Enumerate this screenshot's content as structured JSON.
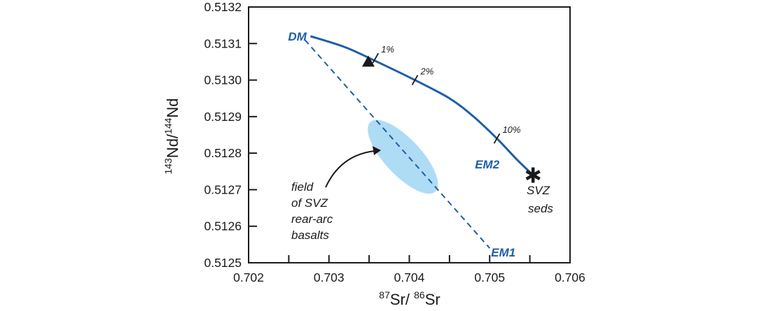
{
  "chart_data": {
    "type": "scatter",
    "title": "",
    "xlabel": {
      "sup1": "87",
      "base1": "Sr/ ",
      "sup2": "86",
      "base2": "Sr"
    },
    "ylabel": {
      "sup1": "143",
      "base1": "Nd/",
      "sup2": "144",
      "base2": "Nd"
    },
    "xlim": [
      0.702,
      0.706
    ],
    "ylim": [
      0.5125,
      0.5132
    ],
    "grid": false,
    "x_ticks": [
      0.702,
      0.7025,
      0.703,
      0.7035,
      0.704,
      0.7045,
      0.705,
      0.7055,
      0.706
    ],
    "x_tick_labels": [
      "0.702",
      "",
      "0.703",
      "",
      "0.704",
      "",
      "0.705",
      "",
      "0.706"
    ],
    "y_ticks": [
      0.5125,
      0.5126,
      0.5127,
      0.5128,
      0.5129,
      0.513,
      0.5131,
      0.5132
    ],
    "y_tick_labels": [
      "0.5125",
      "0.5126",
      "0.5127",
      "0.5128",
      "0.5129",
      "0.5130",
      "0.5131",
      "0.5132"
    ],
    "series": [
      {
        "name": "DM–SVZ seds mixing curve",
        "style": "solid",
        "color": "#1f5ea8",
        "points": [
          [
            0.70277,
            0.51312
          ],
          [
            0.7032,
            0.51309
          ],
          [
            0.7036,
            0.51305
          ],
          [
            0.70407,
            0.513
          ],
          [
            0.7045,
            0.51295
          ],
          [
            0.7048,
            0.5129
          ],
          [
            0.70509,
            0.51284
          ],
          [
            0.70535,
            0.51278
          ],
          [
            0.70554,
            0.51274
          ]
        ]
      },
      {
        "name": "DM–EM1 mixing line",
        "style": "dashed",
        "color": "#1f5ea8",
        "points": [
          [
            0.7027,
            0.51311
          ],
          [
            0.705,
            0.51254
          ]
        ]
      }
    ],
    "mixing_ticks": [
      {
        "label": "1%",
        "x": 0.70358,
        "y": 0.51306
      },
      {
        "label": "2%",
        "x": 0.70407,
        "y": 0.513
      },
      {
        "label": "10%",
        "x": 0.70509,
        "y": 0.51284
      }
    ],
    "markers": [
      {
        "name": "triangle",
        "x": 0.70349,
        "y": 0.51305,
        "color": "#1a1a1a"
      },
      {
        "name": "asterisk",
        "label": "SVZ seds",
        "x": 0.70554,
        "y": 0.51274,
        "color": "#1a1a1a"
      }
    ],
    "endmembers": [
      {
        "label": "DM",
        "x": 0.70277,
        "y": 0.51312
      },
      {
        "label": "EM2",
        "x": 0.7052,
        "y": 0.51277
      },
      {
        "label": "EM1",
        "x": 0.705,
        "y": 0.51254
      }
    ],
    "field": {
      "label_lines": [
        "field",
        "of SVZ",
        "rear-arc",
        "basalts"
      ],
      "color": "#aedcf5",
      "center": [
        0.70392,
        0.51279
      ],
      "extent_x": [
        0.70353,
        0.70432
      ],
      "extent_y": [
        0.51269,
        0.51289
      ]
    },
    "svz_label_lines": [
      "SVZ",
      "seds"
    ]
  }
}
